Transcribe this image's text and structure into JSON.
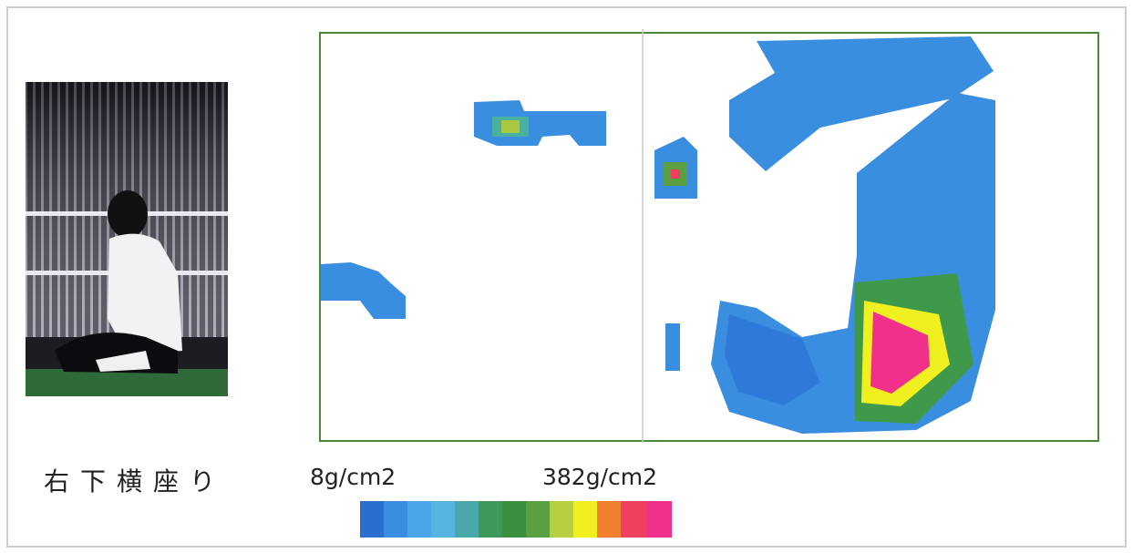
{
  "caption": "右下横座り",
  "scale": {
    "min_label": "8g/cm2",
    "max_label": "382g/cm2"
  }
}
